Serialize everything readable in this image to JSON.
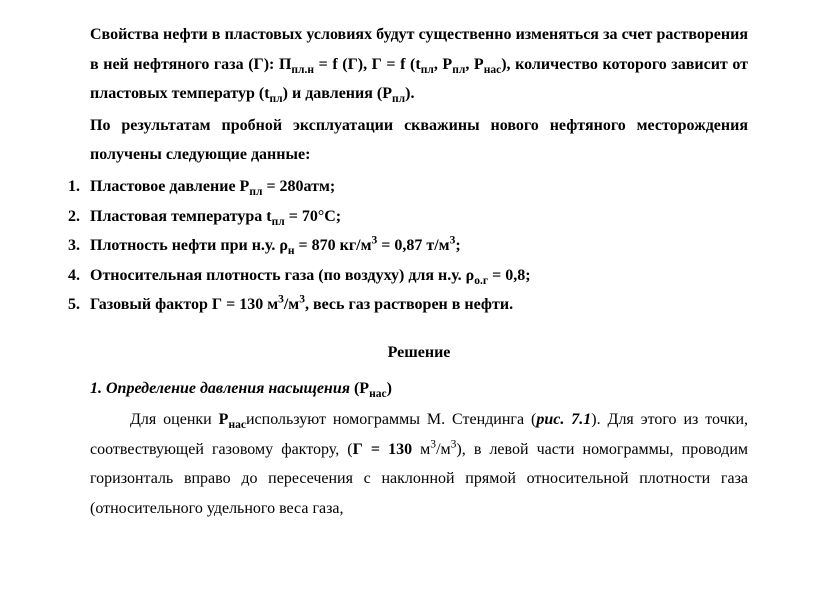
{
  "intro": {
    "p1_part1": "Свойства нефти в пластовых условиях будут существенно изменяться за счет растворения в ней нефтяного газа (Г): П",
    "p1_sub1": "пл.н",
    "p1_part2": " = f (Г), Г = f (t",
    "p1_sub2": "пл",
    "p1_part3": ", P",
    "p1_sub3": "пл",
    "p1_part4": ", P",
    "p1_sub4": "нас",
    "p1_part5": "), количество которого зависит от пластовых температур (t",
    "p1_sub5": "пл",
    "p1_part6": ") и давления (P",
    "p1_sub6": "пл",
    "p1_part7": ").",
    "p2": "По результатам пробной эксплуатации скважины нового нефтяного месторождения получены следующие данные:"
  },
  "items": {
    "i1_a": "Пластовое давление P",
    "i1_sub": "пл",
    "i1_b": " = 280атм;",
    "i2_a": "Пластовая температура t",
    "i2_sub": "пл",
    "i2_b": " = 70°С;",
    "i3_a": "Плотность нефти при н.у. ρ",
    "i3_sub": "н",
    "i3_b": " = 870 кг/м",
    "i3_sup1": "3",
    "i3_c": " = 0,87 т/м",
    "i3_sup2": "3",
    "i3_d": ";",
    "i4_a": "Относительная плотность газа (по воздуху) для н.у. ρ",
    "i4_sub": "о.г",
    "i4_b": " = 0,8;",
    "i5_a": "Газовый фактор Г = 130 м",
    "i5_sup1": "3",
    "i5_b": "/м",
    "i5_sup2": "3",
    "i5_c": ", весь газ растворен в нефти."
  },
  "solution": {
    "heading": "Решение",
    "section_num": "1. Определение давления насыщения ",
    "section_sym": "(P",
    "section_sub": "нас",
    "section_close": ")",
    "body_a": "Для оценки ",
    "body_b": "P",
    "body_sub": "нас",
    "body_c": "используют номограммы М. Стендинга (",
    "body_ref": "рис. 7.1",
    "body_d": "). Для этого из точки, соотвествующей газовому фактору, (",
    "body_e": "Г = 130 ",
    "body_f": "м",
    "body_sup1": "3",
    "body_g": "/м",
    "body_sup2": "3",
    "body_h": "), в левой части номограммы, проводим горизонталь вправо до пересечения с наклонной прямой относительной плотности газа (относительного удельного веса газа,"
  }
}
